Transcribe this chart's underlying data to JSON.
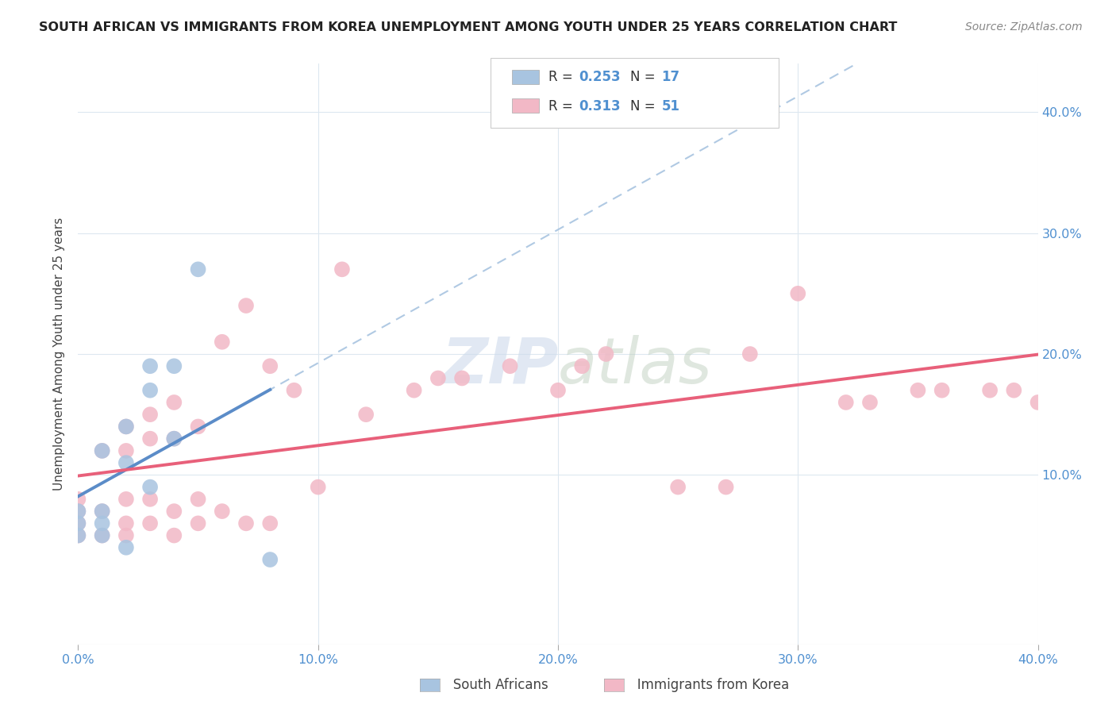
{
  "title": "SOUTH AFRICAN VS IMMIGRANTS FROM KOREA UNEMPLOYMENT AMONG YOUTH UNDER 25 YEARS CORRELATION CHART",
  "source": "Source: ZipAtlas.com",
  "ylabel": "Unemployment Among Youth under 25 years",
  "xlim": [
    0.0,
    0.4
  ],
  "ylim": [
    -0.04,
    0.44
  ],
  "blue_color": "#a8c4e0",
  "pink_color": "#f2b8c6",
  "line_blue_color": "#5b8cc8",
  "line_pink_color": "#e8607a",
  "dashed_line_color": "#a8c4e0",
  "watermark_color": "#c8d8e8",
  "south_africans_x": [
    0.0,
    0.0,
    0.0,
    0.01,
    0.01,
    0.01,
    0.01,
    0.02,
    0.02,
    0.02,
    0.03,
    0.03,
    0.03,
    0.04,
    0.04,
    0.05,
    0.08
  ],
  "south_africans_y": [
    0.05,
    0.06,
    0.07,
    0.05,
    0.06,
    0.07,
    0.12,
    0.04,
    0.11,
    0.14,
    0.09,
    0.17,
    0.19,
    0.13,
    0.19,
    0.27,
    0.03
  ],
  "korea_x": [
    0.0,
    0.0,
    0.0,
    0.0,
    0.01,
    0.01,
    0.01,
    0.02,
    0.02,
    0.02,
    0.02,
    0.02,
    0.03,
    0.03,
    0.03,
    0.03,
    0.04,
    0.04,
    0.04,
    0.04,
    0.05,
    0.05,
    0.05,
    0.06,
    0.06,
    0.07,
    0.07,
    0.08,
    0.08,
    0.09,
    0.1,
    0.11,
    0.12,
    0.14,
    0.15,
    0.16,
    0.18,
    0.2,
    0.21,
    0.22,
    0.25,
    0.27,
    0.28,
    0.3,
    0.32,
    0.33,
    0.35,
    0.36,
    0.38,
    0.39,
    0.4
  ],
  "korea_y": [
    0.05,
    0.06,
    0.07,
    0.08,
    0.05,
    0.07,
    0.12,
    0.05,
    0.06,
    0.08,
    0.12,
    0.14,
    0.06,
    0.08,
    0.13,
    0.15,
    0.05,
    0.07,
    0.13,
    0.16,
    0.06,
    0.08,
    0.14,
    0.07,
    0.21,
    0.06,
    0.24,
    0.06,
    0.19,
    0.17,
    0.09,
    0.27,
    0.15,
    0.17,
    0.18,
    0.18,
    0.19,
    0.17,
    0.19,
    0.2,
    0.09,
    0.09,
    0.2,
    0.25,
    0.16,
    0.16,
    0.17,
    0.17,
    0.17,
    0.17,
    0.16
  ],
  "background_color": "#ffffff",
  "grid_color": "#dde8f0"
}
